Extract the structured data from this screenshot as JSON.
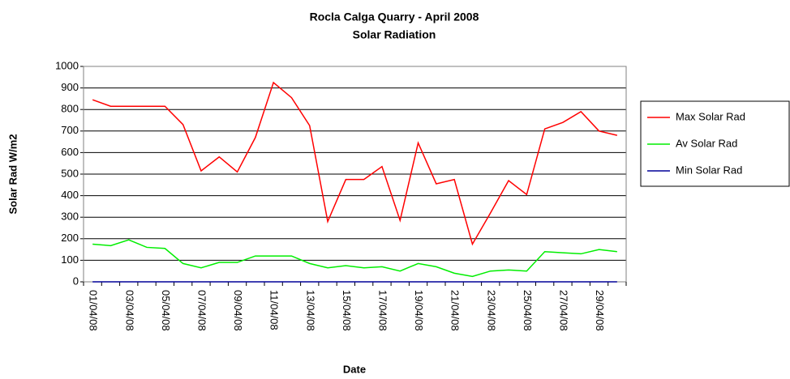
{
  "chart_data": {
    "type": "line",
    "title": "Rocla Calga Quarry - April 2008",
    "subtitle": "Solar Radiation",
    "xlabel": "Date",
    "ylabel": "Solar Rad W/m2",
    "categories": [
      "01/04/08",
      null,
      "03/04/08",
      null,
      "05/04/08",
      null,
      "07/04/08",
      null,
      "09/04/08",
      null,
      "11/04/08",
      null,
      "13/04/08",
      null,
      "15/04/08",
      null,
      "17/04/08",
      null,
      "19/04/08",
      null,
      "21/04/08",
      null,
      "23/04/08",
      null,
      "25/04/08",
      null,
      "27/04/08",
      null,
      "29/04/08",
      null
    ],
    "series": [
      {
        "name": "Max Solar Rad",
        "color": "#ff0000",
        "values": [
          845,
          815,
          815,
          815,
          815,
          730,
          515,
          580,
          510,
          670,
          925,
          855,
          725,
          280,
          475,
          475,
          535,
          285,
          645,
          455,
          475,
          175,
          320,
          470,
          405,
          710,
          740,
          790,
          700,
          680
        ]
      },
      {
        "name": "Av Solar Rad",
        "color": "#00ee00",
        "values": [
          175,
          168,
          195,
          160,
          155,
          85,
          65,
          90,
          90,
          120,
          120,
          120,
          85,
          65,
          75,
          65,
          70,
          50,
          85,
          70,
          40,
          25,
          50,
          55,
          50,
          140,
          135,
          130,
          150,
          140
        ]
      },
      {
        "name": "Min Solar Rad",
        "color": "#000099",
        "values": [
          0,
          0,
          0,
          0,
          0,
          0,
          0,
          0,
          0,
          0,
          0,
          0,
          0,
          0,
          0,
          0,
          0,
          0,
          0,
          0,
          0,
          0,
          0,
          0,
          0,
          0,
          0,
          0,
          0,
          0
        ]
      }
    ],
    "ylim": [
      0,
      1000
    ],
    "yticks": [
      0,
      100,
      200,
      300,
      400,
      500,
      600,
      700,
      800,
      900,
      1000
    ],
    "grid": true,
    "legend": "right"
  }
}
